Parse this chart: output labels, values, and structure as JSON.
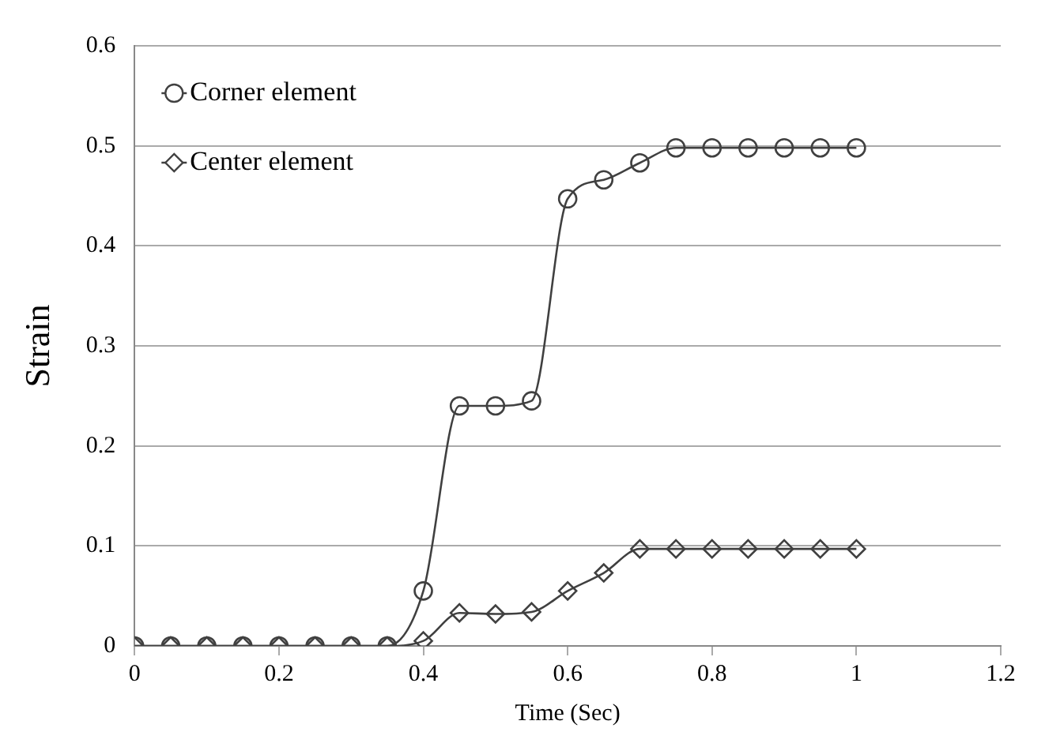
{
  "chart_data": {
    "type": "line",
    "xlabel": "Time (Sec)",
    "ylabel": "Strain",
    "x": [
      0,
      0.05,
      0.1,
      0.15,
      0.2,
      0.25,
      0.3,
      0.35,
      0.4,
      0.45,
      0.5,
      0.55,
      0.6,
      0.65,
      0.7,
      0.75,
      0.8,
      0.85,
      0.9,
      0.95,
      1
    ],
    "series": [
      {
        "name": "Corner element",
        "color": "#404040",
        "marker": "circle",
        "values": [
          0,
          0,
          0,
          0,
          0,
          0,
          0,
          0,
          0.055,
          0.24,
          0.24,
          0.245,
          0.447,
          0.466,
          0.483,
          0.498,
          0.498,
          0.498,
          0.498,
          0.498,
          0.498
        ]
      },
      {
        "name": "Center element",
        "color": "#404040",
        "marker": "diamond",
        "values": [
          0,
          0,
          0,
          0,
          0,
          0,
          0,
          0,
          0.005,
          0.033,
          0.032,
          0.034,
          0.055,
          0.073,
          0.097,
          0.097,
          0.097,
          0.097,
          0.097,
          0.097,
          0.097
        ]
      }
    ],
    "xlim": [
      0,
      1.2
    ],
    "xticks": [
      0,
      0.2,
      0.4,
      0.6,
      0.8,
      1,
      1.2
    ],
    "ylim": [
      0,
      0.6
    ],
    "yticks": [
      0,
      0.1,
      0.2,
      0.3,
      0.4,
      0.5,
      0.6
    ],
    "grid": "y",
    "legend": "top left"
  }
}
